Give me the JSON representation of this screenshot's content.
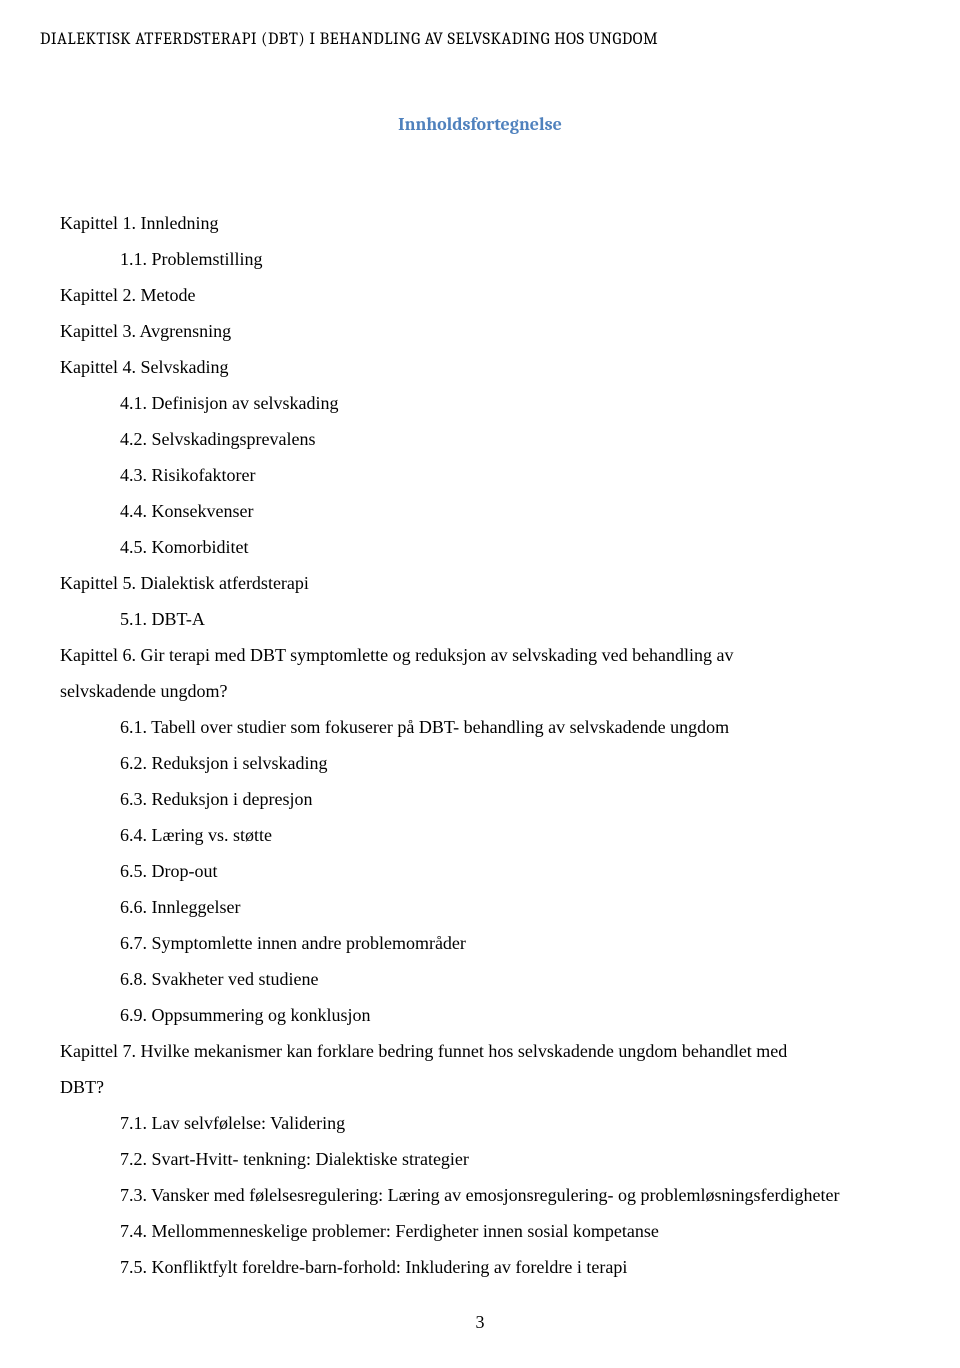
{
  "running_header": "DIALEKTISK ATFERDSTERAPI (DBT) I BEHANDLING AV SELVSKADING HOS UNGDOM",
  "title": "Innholdsfortegnelse",
  "toc": [
    {
      "text": "Kapittel 1. Innledning",
      "level": 1
    },
    {
      "text": "1.1. Problemstilling",
      "level": 2
    },
    {
      "text": "Kapittel 2. Metode",
      "level": 1
    },
    {
      "text": "Kapittel 3. Avgrensning",
      "level": 1
    },
    {
      "text": "Kapittel 4. Selvskading",
      "level": 1
    },
    {
      "text": "4.1. Definisjon av selvskading",
      "level": 2
    },
    {
      "text": "4.2. Selvskadingsprevalens",
      "level": 2
    },
    {
      "text": "4.3. Risikofaktorer",
      "level": 2
    },
    {
      "text": "4.4. Konsekvenser",
      "level": 2
    },
    {
      "text": "4.5. Komorbiditet",
      "level": 2
    },
    {
      "text": "Kapittel 5. Dialektisk atferdsterapi",
      "level": 1
    },
    {
      "text": "5.1. DBT-A",
      "level": 2
    },
    {
      "text": "Kapittel 6. Gir terapi med DBT symptomlette og reduksjon av selvskading ved behandling av",
      "level": 1
    },
    {
      "text": "selvskadende ungdom?",
      "level": 0
    },
    {
      "text": "6.1. Tabell over studier som fokuserer på DBT- behandling av selvskadende ungdom",
      "level": 2
    },
    {
      "text": "6.2. Reduksjon i selvskading",
      "level": 2
    },
    {
      "text": "6.3. Reduksjon i depresjon",
      "level": 2
    },
    {
      "text": "6.4. Læring vs. støtte",
      "level": 2
    },
    {
      "text": "6.5. Drop-out",
      "level": 2
    },
    {
      "text": "6.6. Innleggelser",
      "level": 2
    },
    {
      "text": "6.7. Symptomlette innen andre problemområder",
      "level": 2
    },
    {
      "text": "6.8. Svakheter ved studiene",
      "level": 2
    },
    {
      "text": "6.9. Oppsummering og konklusjon",
      "level": 2
    },
    {
      "text": "Kapittel 7. Hvilke mekanismer kan forklare bedring funnet hos selvskadende ungdom behandlet med",
      "level": 1
    },
    {
      "text": "DBT?",
      "level": 0
    },
    {
      "text": "7.1. Lav selvfølelse: Validering",
      "level": 2
    },
    {
      "text": "7.2. Svart-Hvitt- tenkning: Dialektiske strategier",
      "level": 2
    },
    {
      "text": "7.3. Vansker med følelsesregulering: Læring av emosjonsregulering- og problemløsningsferdigheter",
      "level": 2
    },
    {
      "text": "7.4. Mellommenneskelige problemer: Ferdigheter innen sosial kompetanse",
      "level": 2
    },
    {
      "text": "7.5. Konfliktfylt foreldre-barn-forhold: Inkludering av foreldre i terapi",
      "level": 2
    }
  ],
  "page_number": "3",
  "colors": {
    "title_color": "#4f81bd",
    "text_color": "#000000",
    "background_color": "#ffffff"
  },
  "typography": {
    "body_font_size": 18,
    "header_font_size": 16.5,
    "title_font_size": 18,
    "line_height": 2
  }
}
